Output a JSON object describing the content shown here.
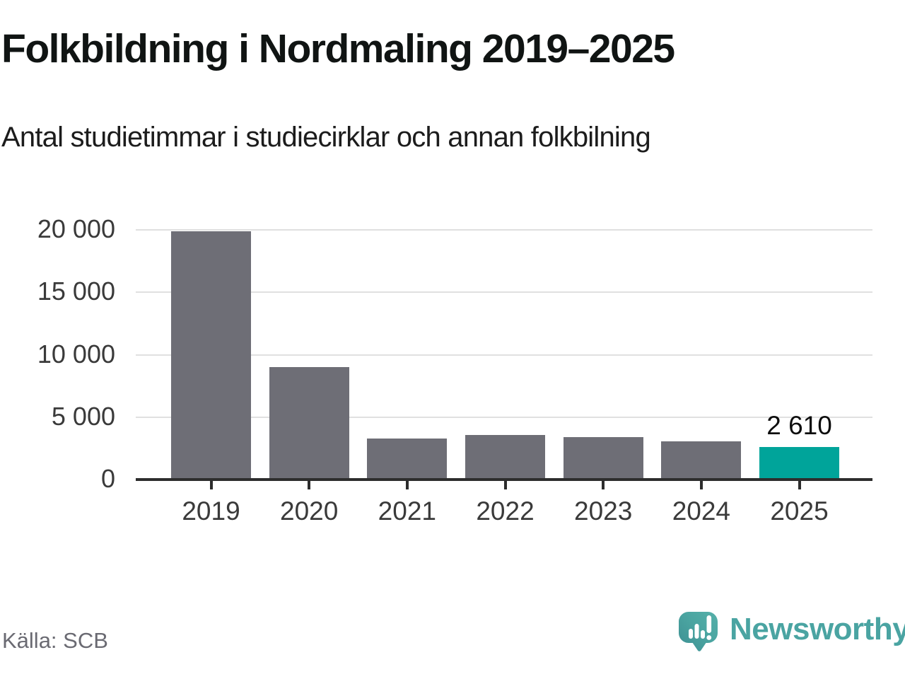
{
  "header": {
    "title": "Folkbildning i Nordmaling 2019–2025",
    "subtitle": "Antal studietimmar i studiecirklar och annan folkbilning"
  },
  "footer": {
    "source": "Källa: SCB",
    "brand": "Newsworthy"
  },
  "colors": {
    "bar_default": "#6e6e76",
    "bar_highlight": "#00a49a",
    "axis": "#2d2d2d",
    "gridline": "#e0e0e0",
    "tick_label": "#3a3a3a",
    "title_text": "#101413",
    "source_text": "#6a6a72",
    "brand_teal": "#4aa4a2"
  },
  "chart_data": {
    "type": "bar",
    "title": "Folkbildning i Nordmaling 2019–2025",
    "subtitle": "Antal studietimmar i studiecirklar och annan folkbilning",
    "xlabel": "",
    "ylabel": "",
    "categories": [
      "2019",
      "2020",
      "2021",
      "2022",
      "2023",
      "2024",
      "2025"
    ],
    "values": [
      19900,
      9000,
      3300,
      3550,
      3400,
      3050,
      2610
    ],
    "highlight_index": 6,
    "value_labels": [
      {
        "index": 6,
        "text": "2 610"
      }
    ],
    "ylim": [
      0,
      20000
    ],
    "yticks": [
      {
        "value": 20000,
        "label": "20 000"
      },
      {
        "value": 15000,
        "label": "15 000"
      },
      {
        "value": 10000,
        "label": "10 000"
      },
      {
        "value": 5000,
        "label": "5 000"
      },
      {
        "value": 0,
        "label": "0"
      }
    ],
    "grid": true,
    "legend": false,
    "source": "Källa: SCB"
  }
}
